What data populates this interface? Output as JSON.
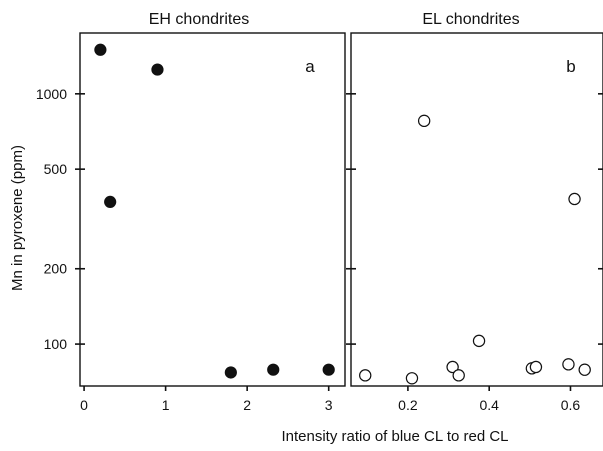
{
  "figure": {
    "ylabel": "Mn in pyroxene (ppm)",
    "xlabel": "Intensity ratio of blue CL to red CL",
    "y_scale": "log",
    "y_tick_labels": [
      "100",
      "200",
      "500",
      "1000"
    ]
  },
  "chart_data": [
    {
      "type": "scatter",
      "title": "EH chondrites",
      "panel_label": "a",
      "marker": "filled-circle",
      "x_ticks": [
        "0",
        "1",
        "2",
        "3"
      ],
      "xlim": [
        -0.05,
        3.2
      ],
      "ylim": [
        68,
        1750
      ],
      "y_scale": "log",
      "points": [
        {
          "x": 0.2,
          "y": 1500
        },
        {
          "x": 0.32,
          "y": 370
        },
        {
          "x": 0.9,
          "y": 1250
        },
        {
          "x": 1.8,
          "y": 77
        },
        {
          "x": 2.32,
          "y": 79
        },
        {
          "x": 3.0,
          "y": 79
        }
      ]
    },
    {
      "type": "scatter",
      "title": "EL chondrites",
      "panel_label": "b",
      "marker": "open-circle",
      "x_ticks": [
        "0.2",
        "0.4",
        "0.6"
      ],
      "xlim": [
        0.06,
        0.68
      ],
      "ylim": [
        68,
        1750
      ],
      "y_scale": "log",
      "points": [
        {
          "x": 0.095,
          "y": 75
        },
        {
          "x": 0.21,
          "y": 73
        },
        {
          "x": 0.24,
          "y": 780
        },
        {
          "x": 0.31,
          "y": 81
        },
        {
          "x": 0.325,
          "y": 75
        },
        {
          "x": 0.375,
          "y": 103
        },
        {
          "x": 0.505,
          "y": 80
        },
        {
          "x": 0.515,
          "y": 81
        },
        {
          "x": 0.595,
          "y": 83
        },
        {
          "x": 0.61,
          "y": 380
        },
        {
          "x": 0.635,
          "y": 79
        }
      ]
    }
  ]
}
